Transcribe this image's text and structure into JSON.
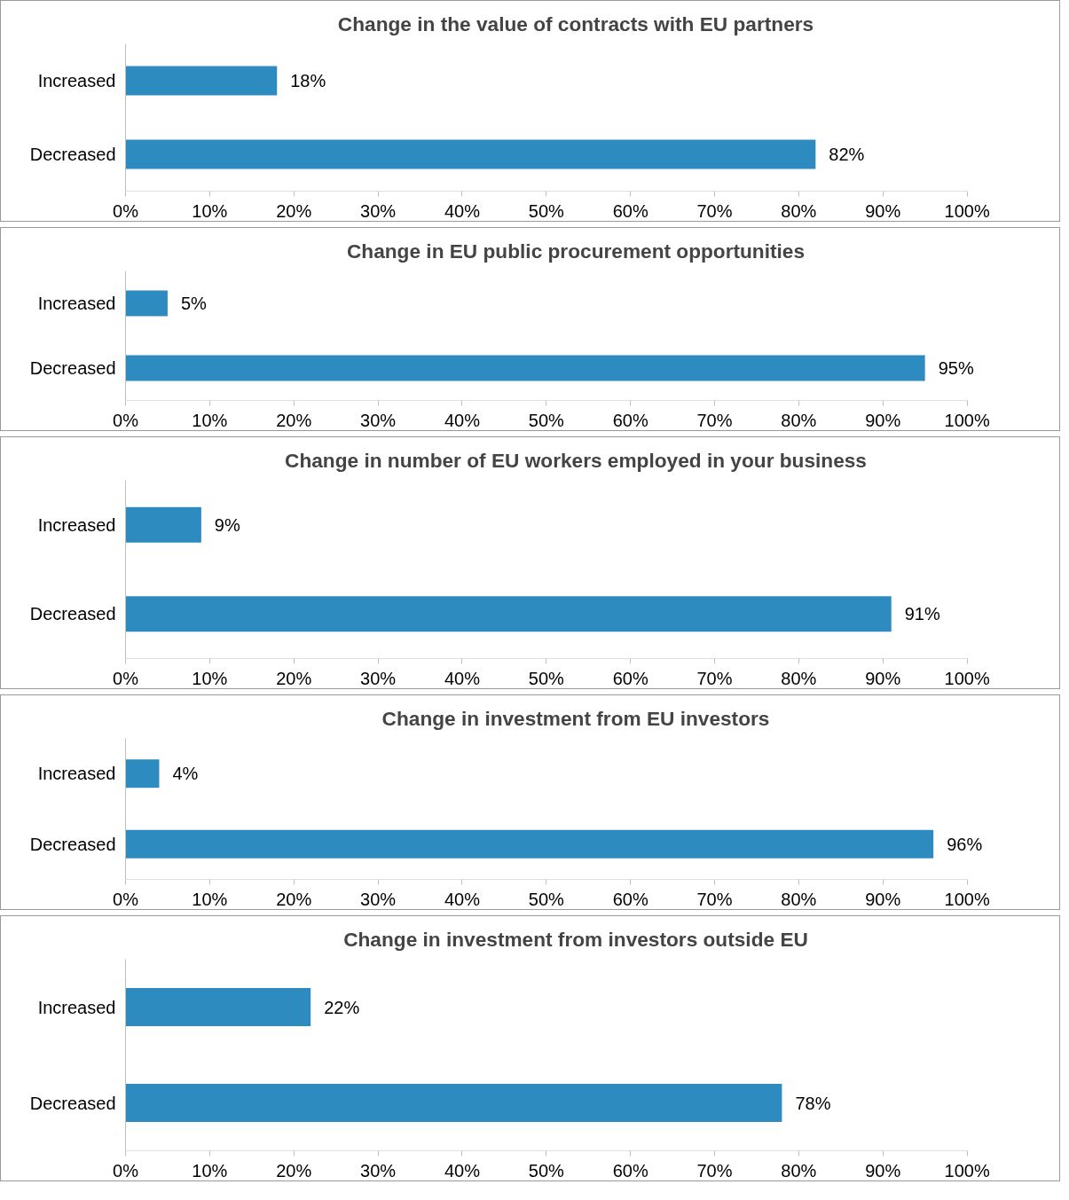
{
  "chart_data": [
    {
      "type": "bar",
      "orientation": "horizontal",
      "title": "Change in the value of contracts with EU partners",
      "categories": [
        "Increased",
        "Decreased"
      ],
      "values": [
        18,
        82
      ],
      "value_labels": [
        "18%",
        "82%"
      ],
      "color": "#2e8bc0",
      "xlim": [
        0,
        100
      ],
      "xticks": [
        {
          "value": 0,
          "label": "0%"
        },
        {
          "value": 10,
          "label": "10%"
        },
        {
          "value": 20,
          "label": "20%"
        },
        {
          "value": 30,
          "label": "30%"
        },
        {
          "value": 40,
          "label": "40%"
        },
        {
          "value": 50,
          "label": "50%"
        },
        {
          "value": 60,
          "label": "60%"
        },
        {
          "value": 70,
          "label": "70%"
        },
        {
          "value": 80,
          "label": "80%"
        },
        {
          "value": 90,
          "label": "90%"
        },
        {
          "value": 100,
          "label": "100%"
        }
      ],
      "grid": false,
      "legend": false
    },
    {
      "type": "bar",
      "orientation": "horizontal",
      "title": "Change in EU public procurement opportunities",
      "categories": [
        "Increased",
        "Decreased"
      ],
      "values": [
        5,
        95
      ],
      "value_labels": [
        "5%",
        "95%"
      ],
      "color": "#2e8bc0",
      "xlim": [
        0,
        100
      ],
      "xticks": [
        {
          "value": 0,
          "label": "0%"
        },
        {
          "value": 10,
          "label": "10%"
        },
        {
          "value": 20,
          "label": "20%"
        },
        {
          "value": 30,
          "label": "30%"
        },
        {
          "value": 40,
          "label": "40%"
        },
        {
          "value": 50,
          "label": "50%"
        },
        {
          "value": 60,
          "label": "60%"
        },
        {
          "value": 70,
          "label": "70%"
        },
        {
          "value": 80,
          "label": "80%"
        },
        {
          "value": 90,
          "label": "90%"
        },
        {
          "value": 100,
          "label": "100%"
        }
      ],
      "grid": false,
      "legend": false
    },
    {
      "type": "bar",
      "orientation": "horizontal",
      "title": "Change in number of EU workers employed in your business",
      "categories": [
        "Increased",
        "Decreased"
      ],
      "values": [
        9,
        91
      ],
      "value_labels": [
        "9%",
        "91%"
      ],
      "color": "#2e8bc0",
      "xlim": [
        0,
        100
      ],
      "xticks": [
        {
          "value": 0,
          "label": "0%"
        },
        {
          "value": 10,
          "label": "10%"
        },
        {
          "value": 20,
          "label": "20%"
        },
        {
          "value": 30,
          "label": "30%"
        },
        {
          "value": 40,
          "label": "40%"
        },
        {
          "value": 50,
          "label": "50%"
        },
        {
          "value": 60,
          "label": "60%"
        },
        {
          "value": 70,
          "label": "70%"
        },
        {
          "value": 80,
          "label": "80%"
        },
        {
          "value": 90,
          "label": "90%"
        },
        {
          "value": 100,
          "label": "100%"
        }
      ],
      "grid": false,
      "legend": false
    },
    {
      "type": "bar",
      "orientation": "horizontal",
      "title": "Change in investment from EU investors",
      "categories": [
        "Increased",
        "Decreased"
      ],
      "values": [
        4,
        96
      ],
      "value_labels": [
        "4%",
        "96%"
      ],
      "color": "#2e8bc0",
      "xlim": [
        0,
        100
      ],
      "xticks": [
        {
          "value": 0,
          "label": "0%"
        },
        {
          "value": 10,
          "label": "10%"
        },
        {
          "value": 20,
          "label": "20%"
        },
        {
          "value": 30,
          "label": "30%"
        },
        {
          "value": 40,
          "label": "40%"
        },
        {
          "value": 50,
          "label": "50%"
        },
        {
          "value": 60,
          "label": "60%"
        },
        {
          "value": 70,
          "label": "70%"
        },
        {
          "value": 80,
          "label": "80%"
        },
        {
          "value": 90,
          "label": "90%"
        },
        {
          "value": 100,
          "label": "100%"
        }
      ],
      "grid": false,
      "legend": false
    },
    {
      "type": "bar",
      "orientation": "horizontal",
      "title": "Change in investment from investors outside EU",
      "categories": [
        "Increased",
        "Decreased"
      ],
      "values": [
        22,
        78
      ],
      "value_labels": [
        "22%",
        "78%"
      ],
      "color": "#2e8bc0",
      "xlim": [
        0,
        100
      ],
      "xticks": [
        {
          "value": 0,
          "label": "0%"
        },
        {
          "value": 10,
          "label": "10%"
        },
        {
          "value": 20,
          "label": "20%"
        },
        {
          "value": 30,
          "label": "30%"
        },
        {
          "value": 40,
          "label": "40%"
        },
        {
          "value": 50,
          "label": "50%"
        },
        {
          "value": 60,
          "label": "60%"
        },
        {
          "value": 70,
          "label": "70%"
        },
        {
          "value": 80,
          "label": "80%"
        },
        {
          "value": 90,
          "label": "90%"
        },
        {
          "value": 100,
          "label": "100%"
        }
      ],
      "grid": false,
      "legend": false
    }
  ]
}
